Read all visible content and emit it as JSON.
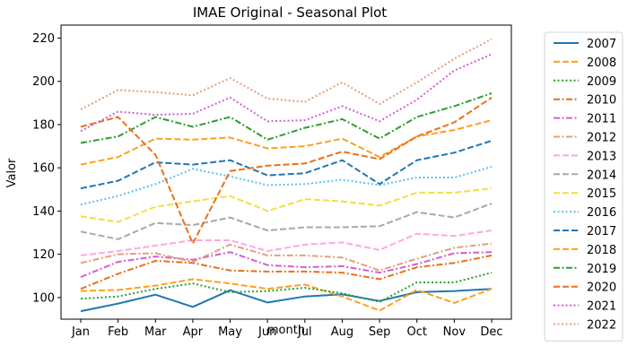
{
  "chart_data": {
    "type": "line",
    "title": "IMAE Original - Seasonal Plot",
    "xlabel": "month",
    "ylabel": "Valor",
    "categories": [
      "Jan",
      "Feb",
      "Mar",
      "Apr",
      "May",
      "Jun",
      "Jul",
      "Aug",
      "Sep",
      "Oct",
      "Nov",
      "Dec"
    ],
    "ylim": [
      90,
      226
    ],
    "yticks": [
      100,
      120,
      140,
      160,
      180,
      200,
      220
    ],
    "grid": false,
    "legend_position": "outside-right",
    "series": [
      {
        "name": "2007",
        "color": "#1f77b4",
        "dash": "solid",
        "values": [
          93.7,
          97.2,
          101.3,
          95.7,
          103.4,
          97.7,
          100.5,
          101.5,
          98.4,
          102.5,
          103.0,
          104.0
        ]
      },
      {
        "name": "2008",
        "color": "#ff9f1c",
        "dash": "dashed",
        "values": [
          103.0,
          103.5,
          105.5,
          108.5,
          106.5,
          104.0,
          106.0,
          100.5,
          94.0,
          103.5,
          97.5,
          104.0
        ]
      },
      {
        "name": "2009",
        "color": "#2ca02c",
        "dash": "dotted",
        "values": [
          99.5,
          100.5,
          104.0,
          106.5,
          102.5,
          103.0,
          104.5,
          102.0,
          98.0,
          107.0,
          107.0,
          111.5
        ]
      },
      {
        "name": "2010",
        "color": "#e8711c",
        "dash": "dashdot",
        "values": [
          104.0,
          111.0,
          117.0,
          116.0,
          112.5,
          112.0,
          112.0,
          111.5,
          108.5,
          114.0,
          116.0,
          119.5
        ]
      },
      {
        "name": "2011",
        "color": "#d45fd0",
        "dash": "dashdot",
        "values": [
          109.5,
          116.5,
          119.0,
          117.5,
          121.0,
          115.0,
          114.0,
          114.5,
          111.5,
          115.5,
          120.5,
          121.0
        ]
      },
      {
        "name": "2012",
        "color": "#e0a080",
        "dash": "dashdot",
        "values": [
          116.0,
          120.0,
          120.5,
          116.5,
          124.5,
          119.5,
          119.5,
          118.5,
          112.5,
          118.0,
          123.0,
          125.0
        ]
      },
      {
        "name": "2013",
        "color": "#ffa8e0",
        "dash": "dashed",
        "values": [
          119.5,
          121.5,
          124.0,
          126.5,
          126.5,
          121.5,
          124.5,
          125.5,
          122.0,
          129.5,
          128.5,
          131.0
        ]
      },
      {
        "name": "2014",
        "color": "#a8a8a8",
        "dash": "dashed",
        "values": [
          130.5,
          127.0,
          134.5,
          133.5,
          137.0,
          131.0,
          132.5,
          132.5,
          133.0,
          139.5,
          137.0,
          143.5
        ]
      },
      {
        "name": "2015",
        "color": "#f0e040",
        "dash": "dashed",
        "values": [
          137.5,
          135.0,
          142.0,
          144.5,
          147.0,
          140.0,
          145.5,
          144.5,
          142.5,
          148.5,
          148.5,
          150.5
        ]
      },
      {
        "name": "2016",
        "color": "#5cc0ea",
        "dash": "dotted",
        "values": [
          143.0,
          147.0,
          152.5,
          159.5,
          156.0,
          152.0,
          152.5,
          154.5,
          152.0,
          155.5,
          155.5,
          160.5
        ]
      },
      {
        "name": "2017",
        "color": "#1f77b4",
        "dash": "dashed",
        "values": [
          150.5,
          154.0,
          162.5,
          161.5,
          163.5,
          156.5,
          157.5,
          163.5,
          152.5,
          163.5,
          167.0,
          172.5
        ]
      },
      {
        "name": "2018",
        "color": "#ff9f1c",
        "dash": "dashed",
        "values": [
          161.5,
          165.0,
          173.5,
          173.0,
          174.0,
          169.0,
          170.0,
          173.5,
          165.0,
          174.5,
          177.5,
          182.0
        ]
      },
      {
        "name": "2019",
        "color": "#2ca02c",
        "dash": "dashdot",
        "values": [
          171.5,
          174.5,
          183.5,
          179.0,
          183.5,
          173.0,
          178.5,
          182.5,
          173.5,
          183.5,
          188.5,
          194.5
        ]
      },
      {
        "name": "2020",
        "color": "#e8711c",
        "dash": "dashed",
        "values": [
          179.0,
          183.5,
          166.0,
          125.0,
          158.5,
          161.0,
          162.0,
          167.5,
          164.0,
          174.5,
          181.0,
          192.5
        ]
      },
      {
        "name": "2021",
        "color": "#d45fd0",
        "dash": "dotted",
        "values": [
          177.0,
          186.0,
          184.5,
          185.0,
          192.5,
          181.5,
          182.0,
          188.5,
          181.5,
          191.5,
          205.0,
          212.5
        ]
      },
      {
        "name": "2022",
        "color": "#e0a080",
        "dash": "dotted",
        "values": [
          187.0,
          196.0,
          195.0,
          193.5,
          201.5,
          192.0,
          190.5,
          199.5,
          189.5,
          199.5,
          210.5,
          219.5
        ]
      }
    ]
  }
}
